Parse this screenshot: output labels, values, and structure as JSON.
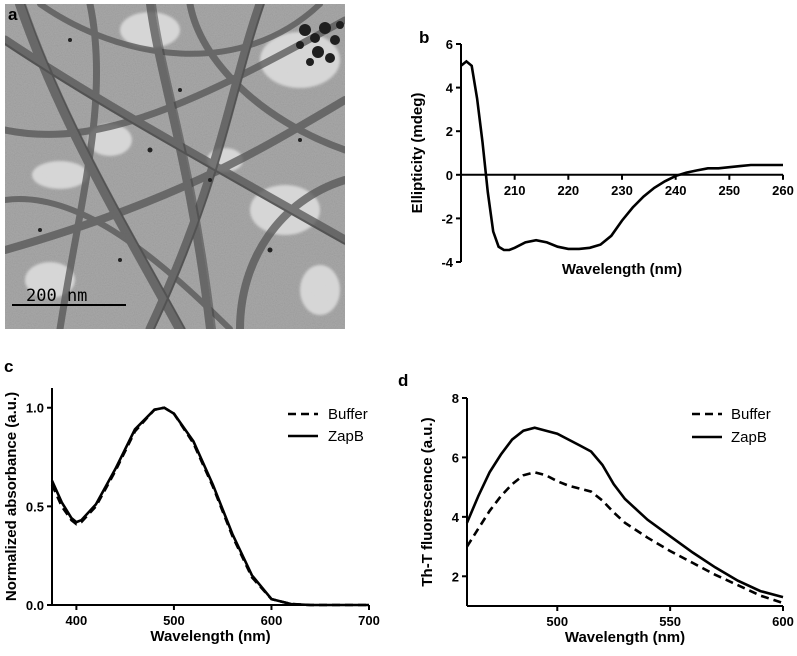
{
  "panels": {
    "a": {
      "label": "a",
      "scale_bar": "200 nm"
    },
    "b": {
      "label": "b"
    },
    "c": {
      "label": "c"
    },
    "d": {
      "label": "d"
    }
  },
  "chart_data": [
    {
      "panel": "b",
      "type": "line",
      "xlabel": "Wavelength (nm)",
      "ylabel": "Ellipticity (mdeg)",
      "xlim": [
        200,
        260
      ],
      "ylim": [
        -4,
        6
      ],
      "xticks": [
        210,
        220,
        230,
        240,
        250,
        260
      ],
      "yticks": [
        -4,
        -2,
        0,
        2,
        4,
        6
      ],
      "x_axis_at_zero": true,
      "grid": false,
      "series": [
        {
          "style": "solid",
          "x": [
            200,
            201,
            202,
            203,
            204,
            205,
            206,
            207,
            208,
            209,
            210,
            212,
            214,
            216,
            218,
            220,
            222,
            224,
            226,
            228,
            230,
            232,
            234,
            236,
            238,
            240,
            242,
            244,
            246,
            248,
            250,
            252,
            254,
            256,
            258,
            260
          ],
          "y": [
            5.0,
            5.2,
            5.0,
            3.5,
            1.5,
            -0.8,
            -2.6,
            -3.3,
            -3.45,
            -3.45,
            -3.35,
            -3.1,
            -3.0,
            -3.1,
            -3.3,
            -3.4,
            -3.4,
            -3.35,
            -3.2,
            -2.8,
            -2.1,
            -1.5,
            -1.0,
            -0.6,
            -0.3,
            -0.05,
            0.1,
            0.2,
            0.3,
            0.3,
            0.35,
            0.4,
            0.45,
            0.45,
            0.45,
            0.45
          ]
        }
      ]
    },
    {
      "panel": "c",
      "type": "line",
      "xlabel": "Wavelength (nm)",
      "ylabel": "Normalized absorbance (a.u.)",
      "xlim": [
        375,
        700
      ],
      "ylim": [
        0,
        1.1
      ],
      "xticks": [
        400,
        500,
        600,
        700
      ],
      "yticks": [
        0.0,
        0.5,
        1.0
      ],
      "ytick_labels": [
        "0.0",
        "0.5",
        "1.0"
      ],
      "legend_position": "top-right",
      "grid": false,
      "series": [
        {
          "name": "Buffer",
          "style": "dashed",
          "x": [
            375,
            385,
            395,
            400,
            405,
            420,
            440,
            460,
            480,
            490,
            500,
            520,
            540,
            560,
            580,
            600,
            620,
            640,
            660,
            700
          ],
          "y": [
            0.61,
            0.5,
            0.43,
            0.41,
            0.42,
            0.5,
            0.68,
            0.88,
            0.99,
            1.0,
            0.97,
            0.82,
            0.6,
            0.35,
            0.14,
            0.03,
            0.005,
            0.0,
            0.0,
            0.0
          ]
        },
        {
          "name": "ZapB",
          "style": "solid",
          "x": [
            375,
            385,
            395,
            400,
            405,
            420,
            440,
            460,
            480,
            490,
            500,
            520,
            540,
            560,
            580,
            600,
            620,
            640,
            660,
            700
          ],
          "y": [
            0.63,
            0.52,
            0.44,
            0.42,
            0.43,
            0.51,
            0.69,
            0.89,
            0.99,
            1.0,
            0.97,
            0.83,
            0.61,
            0.36,
            0.15,
            0.03,
            0.005,
            0.0,
            0.0,
            0.0
          ]
        }
      ]
    },
    {
      "panel": "d",
      "type": "line",
      "xlabel": "Wavelength (nm)",
      "ylabel": "Th-T fluorescence (a.u.)",
      "xlim": [
        460,
        600
      ],
      "ylim": [
        1,
        8
      ],
      "xticks": [
        500,
        550,
        600
      ],
      "yticks": [
        2,
        4,
        6,
        8
      ],
      "legend_position": "top-right",
      "grid": false,
      "series": [
        {
          "name": "Buffer",
          "style": "dashed",
          "x": [
            460,
            465,
            470,
            475,
            480,
            485,
            490,
            495,
            500,
            505,
            510,
            515,
            520,
            525,
            530,
            540,
            550,
            560,
            570,
            580,
            590,
            600
          ],
          "y": [
            3.0,
            3.6,
            4.2,
            4.7,
            5.1,
            5.4,
            5.5,
            5.4,
            5.2,
            5.05,
            4.95,
            4.85,
            4.55,
            4.15,
            3.8,
            3.3,
            2.85,
            2.45,
            2.05,
            1.7,
            1.35,
            1.1
          ]
        },
        {
          "name": "ZapB",
          "style": "solid",
          "x": [
            460,
            465,
            470,
            475,
            480,
            485,
            490,
            495,
            500,
            505,
            510,
            515,
            520,
            525,
            530,
            540,
            550,
            560,
            570,
            580,
            590,
            600
          ],
          "y": [
            3.8,
            4.7,
            5.5,
            6.1,
            6.6,
            6.9,
            7.0,
            6.9,
            6.8,
            6.6,
            6.4,
            6.2,
            5.75,
            5.1,
            4.6,
            3.9,
            3.35,
            2.8,
            2.3,
            1.85,
            1.5,
            1.3
          ]
        }
      ]
    }
  ]
}
